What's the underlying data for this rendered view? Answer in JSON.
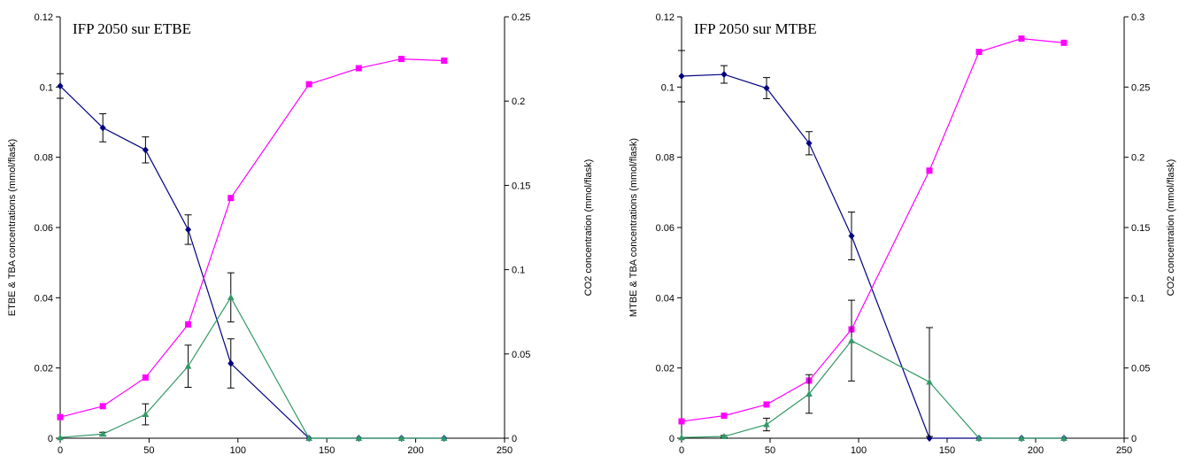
{
  "chart_data": [
    {
      "type": "line",
      "title": "IFP 2050 sur ETBE",
      "xlabel": "",
      "ylabel": "ETBE & TBA concentrations (mmol/flask)",
      "y2label": "CO2 concentration (mmol/flask)",
      "xlim": [
        0,
        250
      ],
      "ylim": [
        0,
        0.12
      ],
      "y2lim": [
        0,
        0.25
      ],
      "x_ticks": [
        "0",
        "50",
        "100",
        "150",
        "200",
        "250"
      ],
      "y_ticks": [
        "0",
        "0.02",
        "0.04",
        "0.06",
        "0.08",
        "0.1",
        "0.12"
      ],
      "y2_ticks": [
        "0",
        "0.05",
        "0.1",
        "0.15",
        "0.2",
        "0.25"
      ],
      "grid": false,
      "colors": {
        "ether": "#000080",
        "co2": "#ff00ff",
        "tba": "#339966",
        "error": "#000000"
      },
      "series": [
        {
          "id": "ether",
          "axis": "left",
          "marker": "diamond",
          "x": [
            0,
            24,
            48,
            72,
            96,
            140,
            168,
            192,
            216
          ],
          "y": [
            0.1003,
            0.0884,
            0.0821,
            0.0594,
            0.0213,
            0,
            0,
            0,
            0
          ],
          "err": [
            0.0035,
            0.004,
            0.0037,
            0.0042,
            0.007,
            0,
            0,
            0,
            0
          ]
        },
        {
          "id": "co2",
          "axis": "right",
          "marker": "square",
          "x": [
            0,
            24,
            48,
            72,
            96,
            140,
            168,
            192,
            216
          ],
          "y": [
            0.0125,
            0.019,
            0.036,
            0.0675,
            0.1425,
            0.21,
            0.2195,
            0.225,
            0.224
          ]
        },
        {
          "id": "tba",
          "axis": "left",
          "marker": "triangle",
          "x": [
            0,
            24,
            48,
            72,
            96,
            140,
            168,
            192,
            216
          ],
          "y": [
            0.0002,
            0.0012,
            0.0068,
            0.0205,
            0.0401,
            0,
            0,
            0,
            0
          ],
          "err": [
            0,
            0.0005,
            0.003,
            0.006,
            0.007,
            0,
            0,
            0,
            0
          ]
        }
      ]
    },
    {
      "type": "line",
      "title": "IFP 2050 sur MTBE",
      "xlabel": "",
      "ylabel": "MTBE & TBA concentrations (mmol/flask)",
      "y2label": "CO2 concentration (mmol/flask)",
      "xlim": [
        0,
        250
      ],
      "ylim": [
        0,
        0.12
      ],
      "y2lim": [
        0,
        0.3
      ],
      "x_ticks": [
        "0",
        "50",
        "100",
        "150",
        "200",
        "250"
      ],
      "y_ticks": [
        "0",
        "0.02",
        "0.04",
        "0.06",
        "0.08",
        "0.1",
        "0.12"
      ],
      "y2_ticks": [
        "0",
        "0.05",
        "0.1",
        "0.15",
        "0.2",
        "0.25",
        "0.3"
      ],
      "grid": false,
      "colors": {
        "ether": "#000080",
        "co2": "#ff00ff",
        "tba": "#339966",
        "error": "#000000"
      },
      "series": [
        {
          "id": "ether",
          "axis": "left",
          "marker": "diamond",
          "x": [
            0,
            24,
            48,
            72,
            96,
            140,
            168,
            192,
            216
          ],
          "y": [
            0.1031,
            0.1036,
            0.0997,
            0.084,
            0.0576,
            0,
            0,
            0,
            0
          ],
          "err": [
            0.0073,
            0.0025,
            0.003,
            0.0033,
            0.0068,
            0,
            0,
            0,
            0
          ]
        },
        {
          "id": "co2",
          "axis": "right",
          "marker": "square",
          "x": [
            0,
            24,
            48,
            72,
            96,
            140,
            168,
            192,
            216
          ],
          "y": [
            0.012,
            0.016,
            0.024,
            0.041,
            0.0775,
            0.1905,
            0.275,
            0.2845,
            0.2815
          ]
        },
        {
          "id": "tba",
          "axis": "left",
          "marker": "triangle",
          "x": [
            0,
            24,
            48,
            72,
            96,
            140,
            168,
            192,
            216
          ],
          "y": [
            0.0002,
            0.0005,
            0.0039,
            0.0126,
            0.0278,
            0.016,
            0,
            0,
            0
          ],
          "err": [
            0,
            0.0003,
            0.0018,
            0.0055,
            0.0115,
            0.0155,
            0,
            0,
            0
          ]
        }
      ]
    }
  ]
}
